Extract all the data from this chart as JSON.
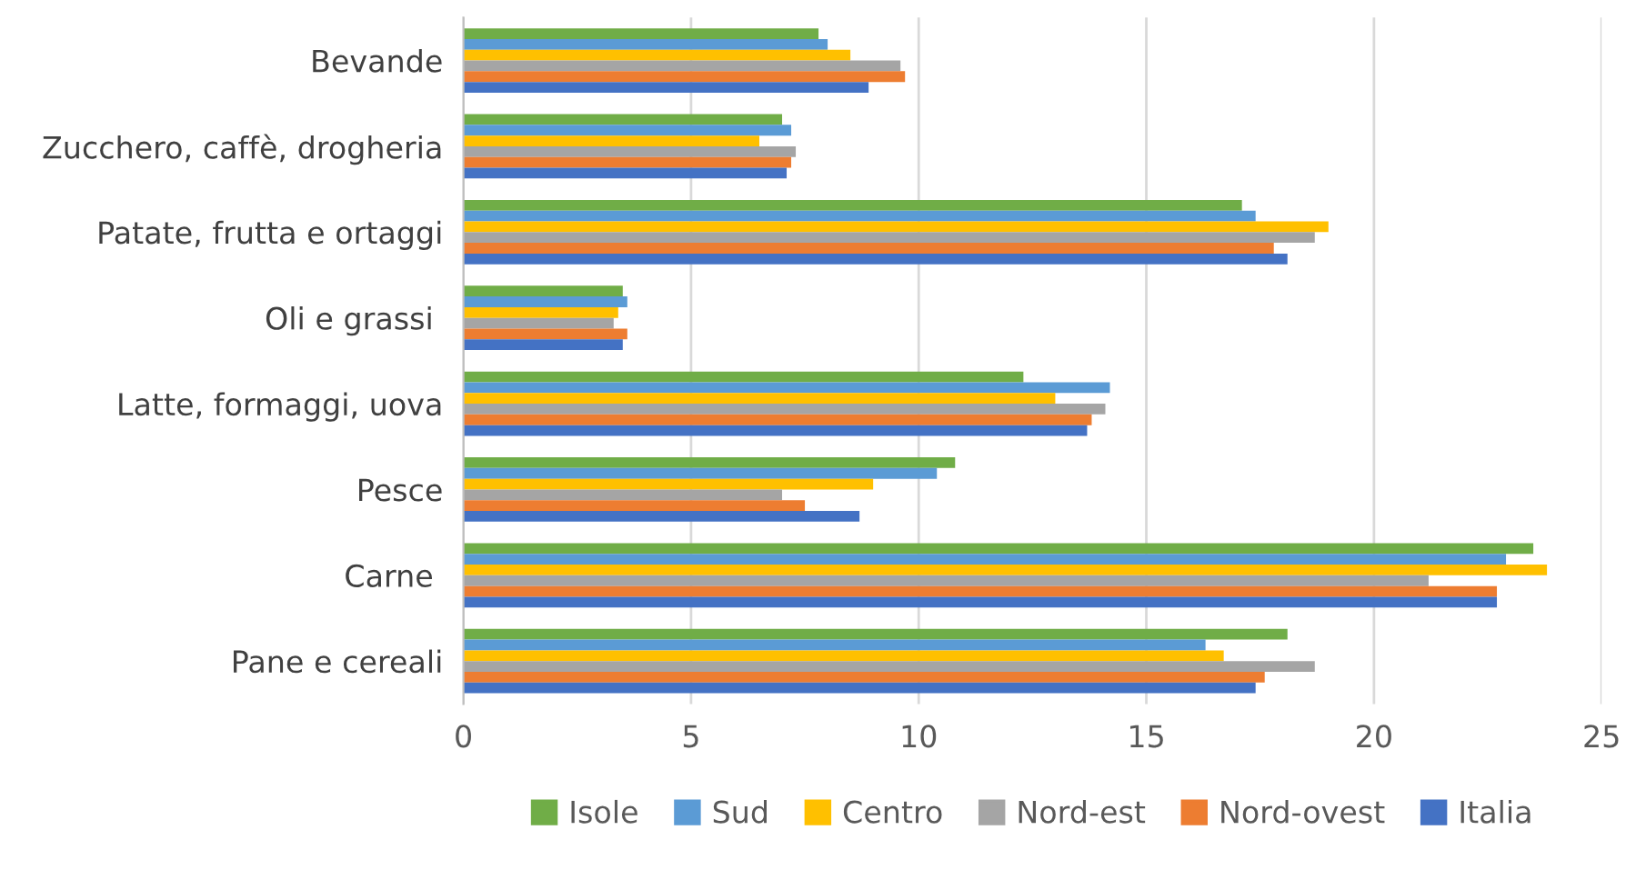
{
  "chart_data": {
    "type": "bar",
    "orientation": "horizontal",
    "categories": [
      "Bevande",
      "Zucchero, caffè, drogheria",
      "Patate, frutta e ortaggi",
      "Oli e grassi ",
      "Latte, formaggi, uova",
      "Pesce",
      "Carne ",
      "Pane e cereali"
    ],
    "series": [
      {
        "name": "Isole",
        "color": "#70ad47",
        "values": [
          7.8,
          7.0,
          17.1,
          3.5,
          12.3,
          10.8,
          23.5,
          18.1
        ]
      },
      {
        "name": "Sud",
        "color": "#5b9bd5",
        "values": [
          8.0,
          7.2,
          17.4,
          3.6,
          14.2,
          10.4,
          22.9,
          16.3
        ]
      },
      {
        "name": "Centro",
        "color": "#ffc000",
        "values": [
          8.5,
          6.5,
          19.0,
          3.4,
          13.0,
          9.0,
          23.8,
          16.7
        ]
      },
      {
        "name": "Nord-est",
        "color": "#a5a5a5",
        "values": [
          9.6,
          7.3,
          18.7,
          3.3,
          14.1,
          7.0,
          21.2,
          18.7
        ]
      },
      {
        "name": "Nord-ovest",
        "color": "#ed7d31",
        "values": [
          9.7,
          7.2,
          17.8,
          3.6,
          13.8,
          7.5,
          22.7,
          17.6
        ]
      },
      {
        "name": "Italia",
        "color": "#4472c4",
        "values": [
          8.9,
          7.1,
          18.1,
          3.5,
          13.7,
          8.7,
          22.7,
          17.4
        ]
      }
    ],
    "xlim": [
      0,
      25
    ],
    "xticks": [
      0,
      5,
      10,
      15,
      20,
      25
    ],
    "grid": "x",
    "legend": "bottom"
  }
}
